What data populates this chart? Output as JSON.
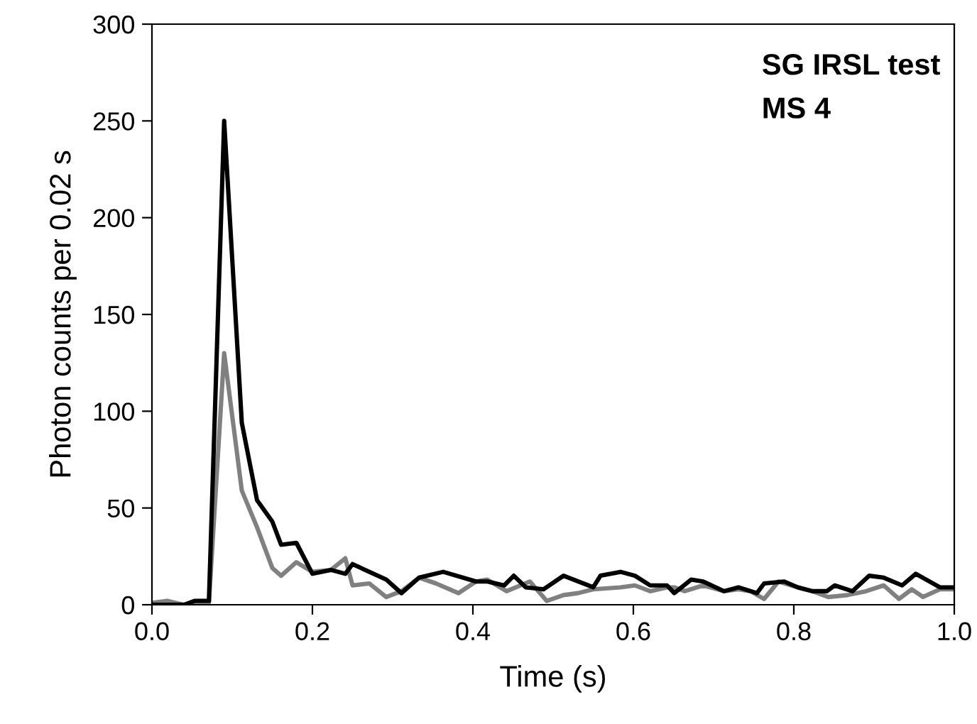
{
  "chart_data": {
    "type": "line",
    "xlabel": "Time (s)",
    "ylabel": "Photon counts per 0.02 s",
    "annotations": [
      "SG IRSL test",
      "MS 4"
    ],
    "xlim": [
      0,
      1
    ],
    "xticks": [
      {
        "value": 0,
        "label": "0.0"
      },
      {
        "value": 0.2,
        "label": "0.2"
      },
      {
        "value": 0.4,
        "label": "0.4"
      },
      {
        "value": 0.6,
        "label": "0.6"
      },
      {
        "value": 0.8,
        "label": "0.8"
      },
      {
        "value": 1,
        "label": "1.0"
      }
    ],
    "ylim": [
      0,
      300
    ],
    "yticks": [
      0,
      50,
      100,
      150,
      200,
      250,
      300
    ],
    "grid": false,
    "legend": false,
    "marker": "none",
    "line_style": "solid",
    "series": [
      {
        "color": "#808080",
        "x": [
          0,
          0.019,
          0.04,
          0.053,
          0.071,
          0.09,
          0.112,
          0.131,
          0.15,
          0.161,
          0.18,
          0.2,
          0.223,
          0.241,
          0.25,
          0.271,
          0.292,
          0.311,
          0.333,
          0.354,
          0.382,
          0.404,
          0.418,
          0.442,
          0.471,
          0.492,
          0.513,
          0.531,
          0.55,
          0.584,
          0.602,
          0.621,
          0.642,
          0.651,
          0.664,
          0.687,
          0.713,
          0.731,
          0.746,
          0.763,
          0.781,
          0.805,
          0.823,
          0.843,
          0.867,
          0.89,
          0.912,
          0.931,
          0.947,
          0.961,
          0.982,
          1.0
        ],
        "values": [
          1,
          2,
          0,
          1,
          1,
          130,
          59,
          40,
          19,
          15,
          22,
          17,
          18,
          24,
          10,
          11,
          4,
          7,
          14,
          11,
          6,
          12,
          13,
          7,
          12,
          2,
          5,
          6,
          8,
          9,
          10,
          7,
          9,
          9,
          7,
          10,
          7,
          8,
          7,
          3,
          12,
          9,
          7,
          4,
          5,
          7,
          10,
          3,
          8,
          4,
          8,
          8
        ]
      },
      {
        "color": "#000000",
        "x": [
          0,
          0.04,
          0.053,
          0.071,
          0.09,
          0.112,
          0.131,
          0.15,
          0.161,
          0.18,
          0.2,
          0.223,
          0.241,
          0.25,
          0.292,
          0.311,
          0.333,
          0.363,
          0.404,
          0.418,
          0.439,
          0.451,
          0.466,
          0.488,
          0.513,
          0.55,
          0.559,
          0.584,
          0.602,
          0.621,
          0.642,
          0.651,
          0.672,
          0.687,
          0.713,
          0.731,
          0.754,
          0.763,
          0.788,
          0.805,
          0.823,
          0.841,
          0.851,
          0.873,
          0.894,
          0.912,
          0.935,
          0.952,
          0.982,
          1.0
        ],
        "values": [
          0,
          0,
          2,
          2,
          250,
          94,
          54,
          43,
          31,
          32,
          16,
          18,
          16,
          21,
          13,
          6,
          14,
          17,
          12,
          12,
          10,
          15,
          9,
          8,
          15,
          9,
          15,
          17,
          15,
          10,
          10,
          6,
          13,
          12,
          7,
          9,
          6,
          11,
          12,
          9,
          7,
          7,
          10,
          7,
          15,
          14,
          10,
          16,
          9,
          9
        ]
      }
    ]
  }
}
